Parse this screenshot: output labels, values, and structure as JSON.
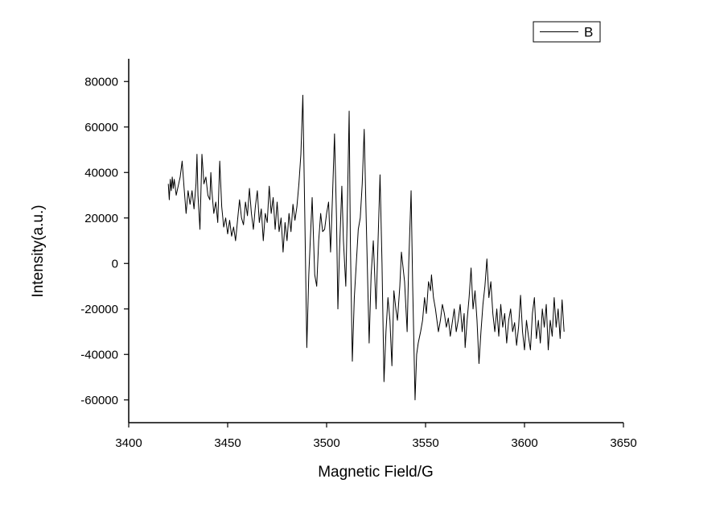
{
  "chart_data": {
    "type": "line",
    "xlabel": "Magnetic Field/G",
    "ylabel": "Intensity(a.u.)",
    "xlim": [
      3400,
      3650
    ],
    "xticks": [
      3400,
      3450,
      3500,
      3550,
      3600,
      3650
    ],
    "ylim": [
      -70000,
      90000
    ],
    "yticks": [
      -60000,
      -40000,
      -20000,
      0,
      20000,
      40000,
      60000,
      80000
    ],
    "legend": "top-right",
    "x": [
      3420,
      3420.5,
      3421,
      3421.5,
      3422,
      3422.5,
      3423,
      3424,
      3425,
      3426,
      3427,
      3428,
      3429,
      3430,
      3431,
      3432,
      3433,
      3434,
      3434.5,
      3435,
      3436,
      3437,
      3438,
      3439,
      3440,
      3441,
      3441.5,
      3442,
      3443,
      3444,
      3445,
      3446,
      3447,
      3448,
      3449,
      3450,
      3451,
      3452,
      3453,
      3454,
      3455,
      3456,
      3457,
      3458,
      3459,
      3460,
      3461,
      3462,
      3463,
      3464,
      3465,
      3466,
      3467,
      3468,
      3469,
      3470,
      3471,
      3472,
      3473,
      3474,
      3475,
      3476,
      3477,
      3478,
      3479,
      3480,
      3481,
      3482,
      3483,
      3484,
      3485,
      3486,
      3487,
      3488,
      3489,
      3490,
      3491,
      3492.7,
      3494,
      3495,
      3496,
      3497,
      3498,
      3499,
      3500,
      3501,
      3502,
      3503,
      3504,
      3505,
      3505.7,
      3506.5,
      3507.7,
      3508.5,
      3509.7,
      3510.5,
      3511.4,
      3512,
      3513,
      3514,
      3515,
      3516,
      3517,
      3518,
      3519,
      3520,
      3521.5,
      3522.5,
      3523.6,
      3525,
      3526,
      3527,
      3528,
      3529,
      3530,
      3531,
      3532,
      3533,
      3534,
      3535,
      3535.8,
      3537,
      3537.8,
      3539.4,
      3540.7,
      3541.5,
      3542.7,
      3543.5,
      3544.7,
      3545.5,
      3546.3,
      3547.5,
      3548.5,
      3549.5,
      3550.4,
      3551.5,
      3552.5,
      3553,
      3554,
      3555,
      3556.5,
      3557.5,
      3558.5,
      3559.5,
      3560.5,
      3561.5,
      3562.5,
      3563.5,
      3564.5,
      3565.5,
      3566.5,
      3567.5,
      3568.5,
      3569.5,
      3570,
      3571,
      3572,
      3573,
      3574,
      3575,
      3576,
      3577,
      3578,
      3579,
      3580,
      3581,
      3582,
      3583,
      3584,
      3585,
      3586,
      3587,
      3588,
      3589,
      3590,
      3591,
      3592,
      3593,
      3594,
      3595,
      3596,
      3597,
      3598,
      3599,
      3600,
      3601,
      3602,
      3603,
      3604,
      3605,
      3606,
      3607,
      3608,
      3609,
      3610,
      3611,
      3612,
      3613,
      3614,
      3615,
      3616,
      3617,
      3618,
      3619,
      3620
    ],
    "series": [
      {
        "name": "B",
        "color": "#000000",
        "values": [
          35000,
          28000,
          37000,
          32000,
          38000,
          33000,
          37000,
          30000,
          34000,
          38000,
          45000,
          33000,
          22000,
          32000,
          26000,
          32000,
          24000,
          35000,
          48000,
          30000,
          15000,
          48000,
          35000,
          38000,
          30000,
          28000,
          40000,
          32000,
          22000,
          27000,
          18000,
          45000,
          25000,
          16000,
          20000,
          13000,
          19000,
          12000,
          16000,
          10000,
          19000,
          28000,
          20000,
          17000,
          27000,
          21000,
          33000,
          22000,
          15000,
          25000,
          32000,
          18000,
          24000,
          10000,
          22000,
          18000,
          34000,
          22000,
          29000,
          15000,
          27000,
          14000,
          20000,
          5000,
          18000,
          10000,
          22000,
          14000,
          26000,
          19000,
          25000,
          35000,
          48000,
          74000,
          20000,
          -37000,
          -5000,
          29000,
          -5000,
          -10000,
          10000,
          22000,
          14000,
          15000,
          22000,
          27000,
          5000,
          30000,
          57000,
          20000,
          -20000,
          5000,
          34000,
          10000,
          -10000,
          25000,
          67000,
          10000,
          -43000,
          -15000,
          0,
          15000,
          20000,
          35000,
          59000,
          20000,
          -35000,
          -5000,
          10000,
          -20000,
          10000,
          39000,
          0,
          -52000,
          -30000,
          -15000,
          -25000,
          -45000,
          -12000,
          -20000,
          -25000,
          -10000,
          5000,
          -8000,
          -30000,
          0,
          32000,
          -10000,
          -60000,
          -40000,
          -35000,
          -30000,
          -25000,
          -15000,
          -22000,
          -8000,
          -12000,
          -5000,
          -15000,
          -20000,
          -30000,
          -25000,
          -18000,
          -22000,
          -28000,
          -24000,
          -32000,
          -26000,
          -20000,
          -30000,
          -25000,
          -18000,
          -30000,
          -22000,
          -37000,
          -25000,
          -15000,
          -2000,
          -20000,
          -12000,
          -25000,
          -44000,
          -30000,
          -18000,
          -10000,
          2000,
          -15000,
          -8000,
          -22000,
          -30000,
          -20000,
          -32000,
          -18000,
          -28000,
          -22000,
          -35000,
          -25000,
          -20000,
          -30000,
          -26000,
          -36000,
          -28000,
          -14000,
          -30000,
          -38000,
          -25000,
          -32000,
          -38000,
          -22000,
          -15000,
          -33000,
          -25000,
          -35000,
          -20000,
          -28000,
          -18000,
          -38000,
          -25000,
          -32000,
          -15000,
          -28000,
          -20000,
          -33000,
          -16000,
          -30000
        ]
      }
    ]
  }
}
